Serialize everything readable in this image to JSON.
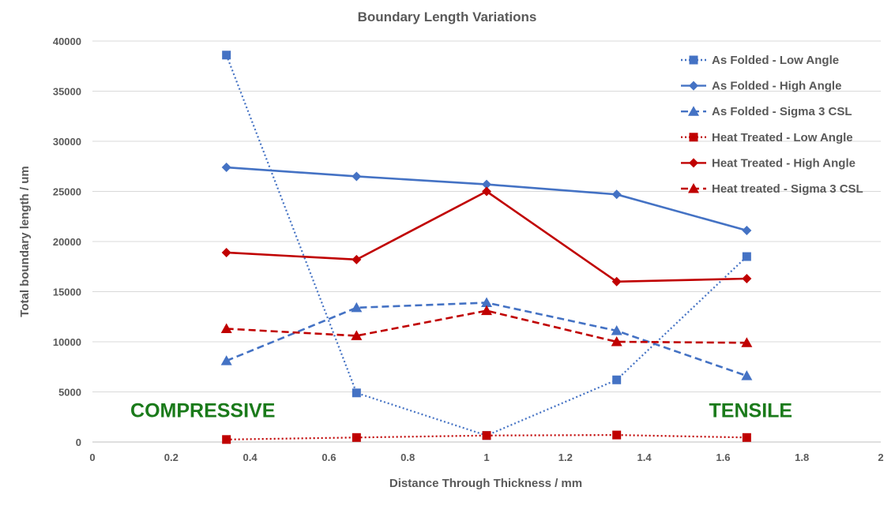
{
  "chart_data": {
    "type": "line",
    "title": "Boundary Length Variations",
    "xlabel": "Distance Through Thickness / mm",
    "ylabel": "Total boundary length / um",
    "xlim": [
      0,
      2
    ],
    "ylim": [
      0,
      40000
    ],
    "xticks": [
      "0",
      "0.2",
      "0.4",
      "0.6",
      "0.8",
      "1",
      "1.2",
      "1.4",
      "1.6",
      "1.8",
      "2"
    ],
    "yticks": [
      "0",
      "5000",
      "10000",
      "15000",
      "20000",
      "25000",
      "30000",
      "35000",
      "40000"
    ],
    "grid": "horizontal",
    "legend_position": "top-right",
    "annotations": [
      {
        "text": "COMPRESSIVE",
        "x": 0.28,
        "y": 3200
      },
      {
        "text": "TENSILE",
        "x": 1.67,
        "y": 3200
      }
    ],
    "colors": {
      "blue": "#4472c4",
      "red": "#c00000",
      "annotation": "#1a7a1a",
      "grid": "#d9d9d9",
      "text": "#595959"
    },
    "series": [
      {
        "name": "As Folded - Low Angle",
        "color": "#4472c4",
        "dash": "dotted",
        "marker": "square",
        "x": [
          0.34,
          0.67,
          1.0,
          1.33,
          1.66
        ],
        "y": [
          38600,
          4900,
          650,
          6200,
          18500
        ]
      },
      {
        "name": "As Folded - High Angle",
        "color": "#4472c4",
        "dash": "solid",
        "marker": "diamond",
        "x": [
          0.34,
          0.67,
          1.0,
          1.33,
          1.66
        ],
        "y": [
          27400,
          26500,
          25700,
          24700,
          21100
        ]
      },
      {
        "name": "As Folded - Sigma 3 CSL",
        "color": "#4472c4",
        "dash": "dashed",
        "marker": "triangle",
        "x": [
          0.34,
          0.67,
          1.0,
          1.33,
          1.66
        ],
        "y": [
          8100,
          13400,
          13900,
          11100,
          6600
        ]
      },
      {
        "name": "Heat Treated - Low Angle",
        "color": "#c00000",
        "dash": "dotted",
        "marker": "square",
        "x": [
          0.34,
          0.67,
          1.0,
          1.33,
          1.66
        ],
        "y": [
          250,
          450,
          650,
          700,
          450
        ]
      },
      {
        "name": "Heat Treated - High Angle",
        "color": "#c00000",
        "dash": "solid",
        "marker": "diamond",
        "x": [
          0.34,
          0.67,
          1.0,
          1.33,
          1.66
        ],
        "y": [
          18900,
          18200,
          25000,
          16000,
          16300
        ]
      },
      {
        "name": "Heat treated - Sigma 3 CSL",
        "color": "#c00000",
        "dash": "dashed",
        "marker": "triangle",
        "x": [
          0.34,
          0.67,
          1.0,
          1.33,
          1.66
        ],
        "y": [
          11300,
          10600,
          13100,
          10000,
          9900
        ]
      }
    ]
  }
}
